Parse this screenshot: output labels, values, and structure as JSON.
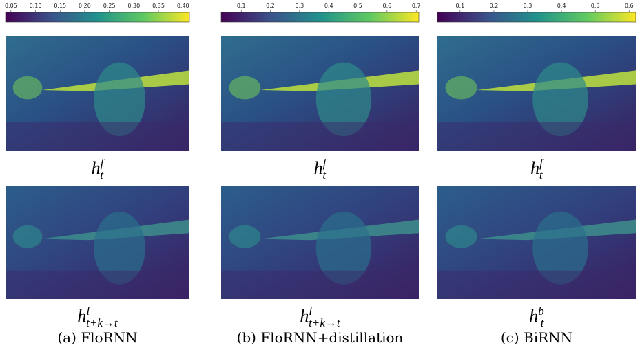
{
  "panels": [
    {
      "caption": "(a) FloRNN",
      "colorbar": {
        "clim": [
          0.039,
          0.413
        ],
        "ticks": [
          0.05,
          {
            "value": 0.1,
            "label": "0.10"
          },
          0.15,
          {
            "value": 0.2,
            "label": "0.20"
          },
          0.25,
          {
            "value": 0.3,
            "label": "0.30"
          },
          0.35,
          {
            "value": 0.4,
            "label": "0.40"
          }
        ]
      },
      "top_label": {
        "base": "h",
        "sup": "f",
        "sub": "t"
      },
      "bottom_label": {
        "base": "h",
        "sup": "l",
        "sub": "t+k→t"
      }
    },
    {
      "caption": "(b) FloRNN+distillation",
      "colorbar": {
        "clim": [
          0.031,
          0.709
        ],
        "ticks": [
          0.1,
          0.2,
          0.3,
          0.4,
          0.5,
          0.6,
          0.7
        ]
      },
      "top_label": {
        "base": "h",
        "sup": "f",
        "sub": "t"
      },
      "bottom_label": {
        "base": "h",
        "sup": "l",
        "sub": "t+k→t"
      }
    },
    {
      "caption": "(c) BiRNN",
      "colorbar": {
        "clim": [
          0.033,
          0.62
        ],
        "ticks": [
          0.1,
          0.2,
          0.3,
          0.4,
          0.5,
          0.6
        ]
      },
      "top_label": {
        "base": "h",
        "sup": "f",
        "sub": "t"
      },
      "bottom_label": {
        "base": "h",
        "sup": "b",
        "sub": "t"
      }
    }
  ]
}
